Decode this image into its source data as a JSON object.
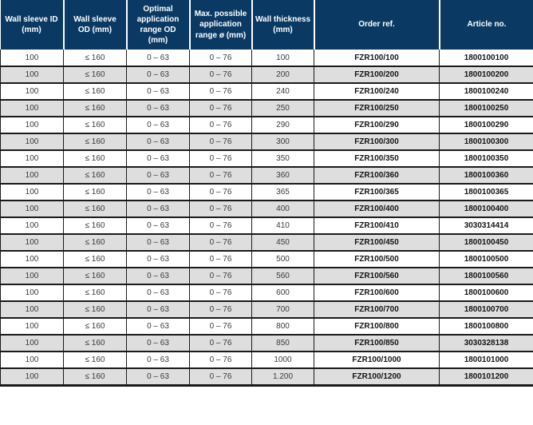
{
  "colors": {
    "header_background": "#0a3a63",
    "header_text": "#ffffff",
    "row_background": "#ffffff",
    "row_alt_background": "#dedede",
    "border": "#1a1a1a",
    "data_text": "#3a3a3a",
    "bold_text": "#141414"
  },
  "table": {
    "column_keys": [
      "wall-sleeve-id",
      "wall-sleeve-od",
      "optimal-application-range-od",
      "max-possible-application-range",
      "wall-thickness",
      "order-ref",
      "article-no"
    ],
    "columns": [
      {
        "label": "Wall sleeve ID (mm)"
      },
      {
        "label": "Wall sleeve OD (mm)"
      },
      {
        "label": "Optimal application range OD (mm)"
      },
      {
        "label": "Max. possible application range ø (mm)"
      },
      {
        "label": "Wall thickness (mm)"
      },
      {
        "label": "Order ref."
      },
      {
        "label": "Article no."
      }
    ],
    "rows": [
      [
        "100",
        "≤ 160",
        "0 – 63",
        "0 – 76",
        "100",
        "FZR100/100",
        "1800100100"
      ],
      [
        "100",
        "≤ 160",
        "0 – 63",
        "0 – 76",
        "200",
        "FZR100/200",
        "1800100200"
      ],
      [
        "100",
        "≤ 160",
        "0 – 63",
        "0 – 76",
        "240",
        "FZR100/240",
        "1800100240"
      ],
      [
        "100",
        "≤ 160",
        "0 – 63",
        "0 – 76",
        "250",
        "FZR100/250",
        "1800100250"
      ],
      [
        "100",
        "≤ 160",
        "0 – 63",
        "0 – 76",
        "290",
        "FZR100/290",
        "1800100290"
      ],
      [
        "100",
        "≤ 160",
        "0 – 63",
        "0 – 76",
        "300",
        "FZR100/300",
        "1800100300"
      ],
      [
        "100",
        "≤ 160",
        "0 – 63",
        "0 – 76",
        "350",
        "FZR100/350",
        "1800100350"
      ],
      [
        "100",
        "≤ 160",
        "0 – 63",
        "0 – 76",
        "360",
        "FZR100/360",
        "1800100360"
      ],
      [
        "100",
        "≤ 160",
        "0 – 63",
        "0 – 76",
        "365",
        "FZR100/365",
        "1800100365"
      ],
      [
        "100",
        "≤ 160",
        "0 – 63",
        "0 – 76",
        "400",
        "FZR100/400",
        "1800100400"
      ],
      [
        "100",
        "≤ 160",
        "0 – 63",
        "0 – 76",
        "410",
        "FZR100/410",
        "3030314414"
      ],
      [
        "100",
        "≤ 160",
        "0 – 63",
        "0 – 76",
        "450",
        "FZR100/450",
        "1800100450"
      ],
      [
        "100",
        "≤ 160",
        "0 – 63",
        "0 – 76",
        "500",
        "FZR100/500",
        "1800100500"
      ],
      [
        "100",
        "≤ 160",
        "0 – 63",
        "0 – 76",
        "560",
        "FZR100/560",
        "1800100560"
      ],
      [
        "100",
        "≤ 160",
        "0 – 63",
        "0 – 76",
        "600",
        "FZR100/600",
        "1800100600"
      ],
      [
        "100",
        "≤ 160",
        "0 – 63",
        "0 – 76",
        "700",
        "FZR100/700",
        "1800100700"
      ],
      [
        "100",
        "≤ 160",
        "0 – 63",
        "0 – 76",
        "800",
        "FZR100/800",
        "1800100800"
      ],
      [
        "100",
        "≤ 160",
        "0 – 63",
        "0 – 76",
        "850",
        "FZR100/850",
        "3030328138"
      ],
      [
        "100",
        "≤ 160",
        "0 – 63",
        "0 – 76",
        "1000",
        "FZR100/1000",
        "1800101000"
      ],
      [
        "100",
        "≤ 160",
        "0 – 63",
        "0 – 76",
        "1.200",
        "FZR100/1200",
        "1800101200"
      ]
    ]
  }
}
